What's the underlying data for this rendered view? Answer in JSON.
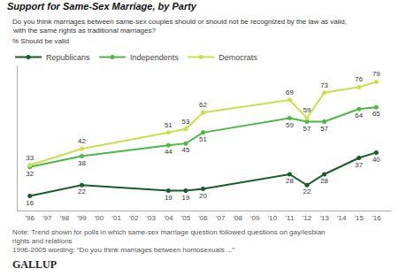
{
  "chart_data": {
    "type": "line",
    "title": "Support for Same-Sex Marriage, by Party",
    "subtitle": [
      "Do you think marriages between same-sex couples should or should not be recognized by the law as valid,",
      "with the same rights as traditional marriages?"
    ],
    "ylabel": "% Should be valid",
    "notes": [
      "Note: Trend shown for polls in which same-sex marriage question followed questions on gay/lesbian",
      "rights and relations",
      "1996-2005 wording: “Do you think marriages between homosexuals ...”"
    ],
    "source": "GALLUP",
    "x": [
      1996,
      1999,
      2004,
      2005,
      2006,
      2011,
      2012,
      2013,
      2015,
      2016
    ],
    "series": [
      {
        "name": "Republicans",
        "color": "#1a5c2a",
        "values": [
          16,
          22,
          19,
          19,
          20,
          28,
          22,
          28,
          37,
          40
        ]
      },
      {
        "name": "Independents",
        "color": "#4db848",
        "values": [
          32,
          38,
          44,
          45,
          51,
          59,
          57,
          57,
          64,
          65
        ]
      },
      {
        "name": "Democrats",
        "color": "#c8e04a",
        "values": [
          33,
          42,
          51,
          53,
          62,
          69,
          59,
          73,
          76,
          79
        ]
      }
    ],
    "xlim": [
      1995.3,
      2016.9
    ],
    "xticks": [
      {
        "value": 1996,
        "label": "'96"
      },
      {
        "value": 1997,
        "label": "'97"
      },
      {
        "value": 1998,
        "label": "'98"
      },
      {
        "value": 1999,
        "label": "'99"
      },
      {
        "value": 2000,
        "label": "'00"
      },
      {
        "value": 2001,
        "label": "'01"
      },
      {
        "value": 2002,
        "label": "'02"
      },
      {
        "value": 2003,
        "label": "'03"
      },
      {
        "value": 2004,
        "label": "'04"
      },
      {
        "value": 2005,
        "label": "'05"
      },
      {
        "value": 2006,
        "label": "'06"
      },
      {
        "value": 2007,
        "label": "'07"
      },
      {
        "value": 2008,
        "label": "'08"
      },
      {
        "value": 2009,
        "label": "'09"
      },
      {
        "value": 2010,
        "label": "'10"
      },
      {
        "value": 2011,
        "label": "'11"
      },
      {
        "value": 2012,
        "label": "'12"
      },
      {
        "value": 2013,
        "label": "'13"
      },
      {
        "value": 2014,
        "label": "'14"
      },
      {
        "value": 2015,
        "label": "'15"
      },
      {
        "value": 2016,
        "label": "'16"
      }
    ],
    "ylim": [
      8,
      88
    ],
    "yticks": [],
    "tick_labels": "x",
    "grid": false,
    "legend": "upper left",
    "marker": "circle",
    "data_labels": true
  }
}
